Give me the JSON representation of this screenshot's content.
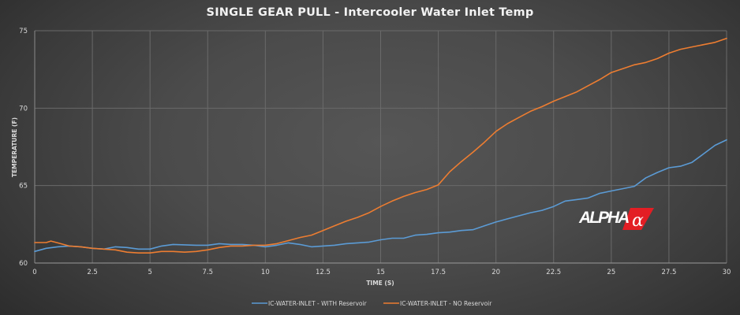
{
  "chart_data": {
    "type": "line",
    "title": "SINGLE GEAR PULL - Intercooler Water Inlet Temp",
    "xlabel": "TIME  (S)",
    "ylabel": "TEMPERATURE (F)",
    "xlim": [
      0,
      30
    ],
    "ylim": [
      60,
      75
    ],
    "x_ticks": [
      "0",
      "2.5",
      "5",
      "7.5",
      "10",
      "12.5",
      "15",
      "17.5",
      "20",
      "22.5",
      "25",
      "27.5",
      "30"
    ],
    "y_ticks": [
      "60",
      "65",
      "70",
      "75"
    ],
    "grid": true,
    "legend_position": "bottom",
    "series": [
      {
        "name": "IC-WATER-INLET - WITH Reservoir",
        "color": "#5b9bd5",
        "x": [
          0,
          0.5,
          1,
          1.5,
          2,
          2.5,
          3,
          3.5,
          4,
          4.5,
          5,
          5.5,
          6,
          7,
          7.5,
          8,
          8.5,
          9,
          9.5,
          10,
          10.5,
          11,
          11.5,
          12,
          12.5,
          13,
          13.5,
          14,
          14.5,
          15,
          15.5,
          16,
          16.5,
          17,
          17.5,
          18,
          18.5,
          19,
          19.5,
          20,
          20.5,
          21,
          21.5,
          22,
          22.5,
          23,
          23.5,
          24,
          24.5,
          25,
          25.5,
          26,
          26.5,
          27,
          27.5,
          28,
          28.5,
          29,
          29.5,
          30
        ],
        "values": [
          60.75,
          60.95,
          61.05,
          61.1,
          61.05,
          60.95,
          60.9,
          61.05,
          61.0,
          60.9,
          60.9,
          61.1,
          61.2,
          61.15,
          61.15,
          61.25,
          61.2,
          61.2,
          61.15,
          61.05,
          61.15,
          61.3,
          61.2,
          61.05,
          61.1,
          61.15,
          61.25,
          61.3,
          61.35,
          61.5,
          61.6,
          61.6,
          61.8,
          61.85,
          61.95,
          62.0,
          62.1,
          62.15,
          62.4,
          62.65,
          62.85,
          63.05,
          63.25,
          63.4,
          63.65,
          64.0,
          64.1,
          64.2,
          64.5,
          64.65,
          64.8,
          64.95,
          65.5,
          65.85,
          66.15,
          66.25,
          66.5,
          67.05,
          67.6,
          67.95
        ]
      },
      {
        "name": "IC-WATER-INLET - NO Reservoir",
        "color": "#ed7d31",
        "x": [
          0,
          0.5,
          0.7,
          1,
          1.5,
          2,
          2.5,
          3,
          3.5,
          4,
          4.5,
          5,
          5.5,
          6,
          6.5,
          7,
          7.5,
          8,
          8.5,
          9,
          9.5,
          10,
          10.5,
          11,
          11.5,
          12,
          12.5,
          13,
          13.5,
          14,
          14.5,
          15,
          15.5,
          16,
          16.5,
          17,
          17.5,
          18,
          18.5,
          19,
          19.5,
          20,
          20.5,
          21,
          21.5,
          22,
          22.5,
          23,
          23.5,
          24,
          24.5,
          25,
          25.5,
          26,
          26.5,
          27,
          27.5,
          28,
          28.5,
          29,
          29.5,
          30
        ],
        "values": [
          61.32,
          61.32,
          61.42,
          61.3,
          61.1,
          61.05,
          60.95,
          60.9,
          60.85,
          60.7,
          60.65,
          60.65,
          60.75,
          60.75,
          60.7,
          60.75,
          60.85,
          61.0,
          61.1,
          61.1,
          61.15,
          61.15,
          61.25,
          61.45,
          61.65,
          61.8,
          62.1,
          62.4,
          62.7,
          62.95,
          63.25,
          63.65,
          64.0,
          64.3,
          64.55,
          64.75,
          65.05,
          65.9,
          66.55,
          67.15,
          67.8,
          68.5,
          69.0,
          69.4,
          69.8,
          70.1,
          70.45,
          70.75,
          71.05,
          71.45,
          71.85,
          72.3,
          72.55,
          72.8,
          72.95,
          73.2,
          73.55,
          73.8,
          73.95,
          74.1,
          74.25,
          74.5
        ]
      }
    ]
  },
  "logo": {
    "text": "ALPHA",
    "symbol": "α",
    "accent_color": "#e31e24"
  }
}
